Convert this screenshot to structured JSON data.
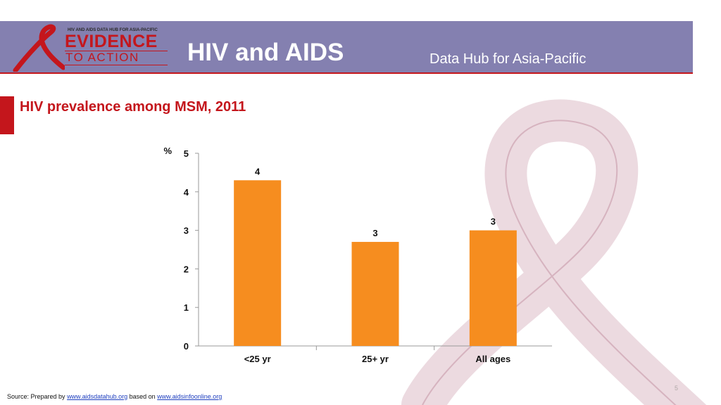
{
  "header": {
    "title": "HIV and AIDS",
    "subtitle": "Data Hub for Asia-Pacific",
    "logo": {
      "top_text": "HIV AND AIDS DATA HUB FOR ASIA-PACIFIC",
      "line1": "EVIDENCE",
      "line2": "TO ACTION"
    },
    "colors": {
      "header_bg": "#8480b0",
      "accent": "#c4161c"
    }
  },
  "slide": {
    "title": "HIV prevalence among MSM, 2011",
    "page_number": "5"
  },
  "footer": {
    "prefix": "Source: Prepared by ",
    "link1": "www.aidsdatahub.org",
    "middle": " based on ",
    "link2": "www.aidsinfoonline.org"
  },
  "chart_data": {
    "type": "bar",
    "categories": [
      "<25 yr",
      "25+ yr",
      "All ages"
    ],
    "values": [
      4.3,
      2.7,
      3.0
    ],
    "data_labels": [
      "4",
      "3",
      "3"
    ],
    "y_unit": "%",
    "ylim": [
      0,
      5
    ],
    "yticks": [
      0,
      1,
      2,
      3,
      4,
      5
    ],
    "bar_color": "#f68d1f",
    "grid": false,
    "legend": "none"
  }
}
